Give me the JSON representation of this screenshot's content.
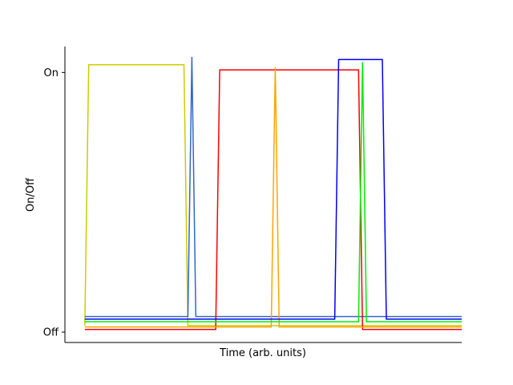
{
  "chart_data": {
    "type": "line",
    "xlabel": "Time (arb. units)",
    "ylabel": "On/Off",
    "y_ticks": [
      {
        "value": 0,
        "label": "Off"
      },
      {
        "value": 1,
        "label": "On"
      }
    ],
    "x_ticks": [],
    "xlim": [
      0,
      100
    ],
    "ylim": [
      -0.04,
      1.1
    ],
    "grid": false,
    "legend": "none",
    "spines": "left-bottom",
    "series": [
      {
        "color": "#cccc00",
        "points": [
          [
            5,
            0.025
          ],
          [
            6,
            1.03
          ],
          [
            30,
            1.03
          ],
          [
            31,
            0.025
          ],
          [
            100,
            0.025
          ]
        ]
      },
      {
        "color": "#3366cc",
        "points": [
          [
            5,
            0.06
          ],
          [
            31,
            0.06
          ],
          [
            32,
            1.06
          ],
          [
            33,
            0.06
          ],
          [
            100,
            0.06
          ]
        ]
      },
      {
        "color": "#ff0000",
        "points": [
          [
            5,
            0.01
          ],
          [
            38,
            0.01
          ],
          [
            39,
            1.01
          ],
          [
            74,
            1.01
          ],
          [
            75,
            0.01
          ],
          [
            100,
            0.01
          ]
        ]
      },
      {
        "color": "#ffa500",
        "points": [
          [
            5,
            0.02
          ],
          [
            52,
            0.02
          ],
          [
            53,
            1.02
          ],
          [
            54,
            0.02
          ],
          [
            100,
            0.02
          ]
        ]
      },
      {
        "color": "#0000ff",
        "points": [
          [
            5,
            0.05
          ],
          [
            68,
            0.05
          ],
          [
            69,
            1.05
          ],
          [
            80,
            1.05
          ],
          [
            81,
            0.05
          ],
          [
            100,
            0.05
          ]
        ]
      },
      {
        "color": "#00ee00",
        "points": [
          [
            5,
            0.04
          ],
          [
            74,
            0.04
          ],
          [
            75,
            1.04
          ],
          [
            76,
            0.04
          ],
          [
            100,
            0.04
          ]
        ]
      }
    ]
  }
}
